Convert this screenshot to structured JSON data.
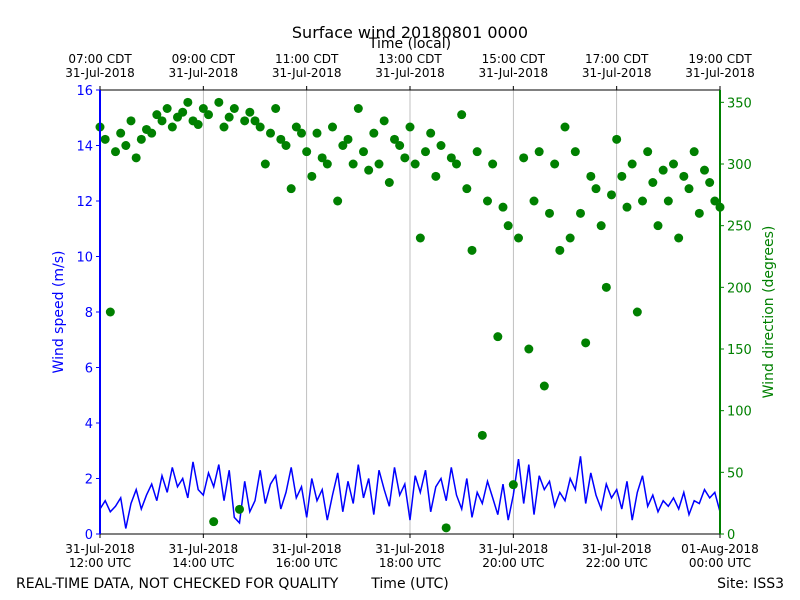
{
  "chart_data": {
    "type": "line+scatter",
    "title": "Surface wind 20180801 0000",
    "x_label": "Time (UTC)",
    "x2_label": "Time (local)",
    "y_label": "Wind speed (m/s)",
    "y2_label": "Wind direction (degrees)",
    "footer_left": "REAL-TIME DATA, NOT CHECKED FOR QUALITY",
    "footer_right": "Site: ISS3",
    "xlim": [
      "2018-07-31T12:00",
      "2018-08-01T00:00"
    ],
    "xticks": [
      {
        "value": "2018-07-31T12:00",
        "label": "31-Jul-2018\n12:00 UTC"
      },
      {
        "value": "2018-07-31T14:00",
        "label": "31-Jul-2018\n14:00 UTC"
      },
      {
        "value": "2018-07-31T16:00",
        "label": "31-Jul-2018\n16:00 UTC"
      },
      {
        "value": "2018-07-31T18:00",
        "label": "31-Jul-2018\n18:00 UTC"
      },
      {
        "value": "2018-07-31T20:00",
        "label": "31-Jul-2018\n20:00 UTC"
      },
      {
        "value": "2018-07-31T22:00",
        "label": "31-Jul-2018\n22:00 UTC"
      },
      {
        "value": "2018-08-01T00:00",
        "label": "01-Aug-2018\n00:00 UTC"
      }
    ],
    "x2ticks": [
      {
        "value": "2018-07-31T12:00",
        "label": "07:00 CDT\n31-Jul-2018"
      },
      {
        "value": "2018-07-31T14:00",
        "label": "09:00 CDT\n31-Jul-2018"
      },
      {
        "value": "2018-07-31T16:00",
        "label": "11:00 CDT\n31-Jul-2018"
      },
      {
        "value": "2018-07-31T18:00",
        "label": "13:00 CDT\n31-Jul-2018"
      },
      {
        "value": "2018-07-31T20:00",
        "label": "15:00 CDT\n31-Jul-2018"
      },
      {
        "value": "2018-07-31T22:00",
        "label": "17:00 CDT\n31-Jul-2018"
      },
      {
        "value": "2018-08-01T00:00",
        "label": "19:00 CDT\n31-Jul-2018"
      }
    ],
    "xgrid": true,
    "ylim": [
      0,
      16
    ],
    "yticks": [
      0,
      2,
      4,
      6,
      8,
      10,
      12,
      14,
      16
    ],
    "y2lim": [
      0,
      360
    ],
    "y2ticks": [
      0,
      50,
      100,
      150,
      200,
      250,
      300,
      350
    ],
    "x": [
      "2018-07-31T12:00",
      "2018-07-31T12:06",
      "2018-07-31T12:12",
      "2018-07-31T12:18",
      "2018-07-31T12:24",
      "2018-07-31T12:30",
      "2018-07-31T12:36",
      "2018-07-31T12:42",
      "2018-07-31T12:48",
      "2018-07-31T12:54",
      "2018-07-31T13:00",
      "2018-07-31T13:06",
      "2018-07-31T13:12",
      "2018-07-31T13:18",
      "2018-07-31T13:24",
      "2018-07-31T13:30",
      "2018-07-31T13:36",
      "2018-07-31T13:42",
      "2018-07-31T13:48",
      "2018-07-31T13:54",
      "2018-07-31T14:00",
      "2018-07-31T14:06",
      "2018-07-31T14:12",
      "2018-07-31T14:18",
      "2018-07-31T14:24",
      "2018-07-31T14:30",
      "2018-07-31T14:36",
      "2018-07-31T14:42",
      "2018-07-31T14:48",
      "2018-07-31T14:54",
      "2018-07-31T15:00",
      "2018-07-31T15:06",
      "2018-07-31T15:12",
      "2018-07-31T15:18",
      "2018-07-31T15:24",
      "2018-07-31T15:30",
      "2018-07-31T15:36",
      "2018-07-31T15:42",
      "2018-07-31T15:48",
      "2018-07-31T15:54",
      "2018-07-31T16:00",
      "2018-07-31T16:06",
      "2018-07-31T16:12",
      "2018-07-31T16:18",
      "2018-07-31T16:24",
      "2018-07-31T16:30",
      "2018-07-31T16:36",
      "2018-07-31T16:42",
      "2018-07-31T16:48",
      "2018-07-31T16:54",
      "2018-07-31T17:00",
      "2018-07-31T17:06",
      "2018-07-31T17:12",
      "2018-07-31T17:18",
      "2018-07-31T17:24",
      "2018-07-31T17:30",
      "2018-07-31T17:36",
      "2018-07-31T17:42",
      "2018-07-31T17:48",
      "2018-07-31T17:54",
      "2018-07-31T18:00",
      "2018-07-31T18:06",
      "2018-07-31T18:12",
      "2018-07-31T18:18",
      "2018-07-31T18:24",
      "2018-07-31T18:30",
      "2018-07-31T18:36",
      "2018-07-31T18:42",
      "2018-07-31T18:48",
      "2018-07-31T18:54",
      "2018-07-31T19:00",
      "2018-07-31T19:06",
      "2018-07-31T19:12",
      "2018-07-31T19:18",
      "2018-07-31T19:24",
      "2018-07-31T19:30",
      "2018-07-31T19:36",
      "2018-07-31T19:42",
      "2018-07-31T19:48",
      "2018-07-31T19:54",
      "2018-07-31T20:00",
      "2018-07-31T20:06",
      "2018-07-31T20:12",
      "2018-07-31T20:18",
      "2018-07-31T20:24",
      "2018-07-31T20:30",
      "2018-07-31T20:36",
      "2018-07-31T20:42",
      "2018-07-31T20:48",
      "2018-07-31T20:54",
      "2018-07-31T21:00",
      "2018-07-31T21:06",
      "2018-07-31T21:12",
      "2018-07-31T21:18",
      "2018-07-31T21:24",
      "2018-07-31T21:30",
      "2018-07-31T21:36",
      "2018-07-31T21:42",
      "2018-07-31T21:48",
      "2018-07-31T21:54",
      "2018-07-31T22:00",
      "2018-07-31T22:06",
      "2018-07-31T22:12",
      "2018-07-31T22:18",
      "2018-07-31T22:24",
      "2018-07-31T22:30",
      "2018-07-31T22:36",
      "2018-07-31T22:42",
      "2018-07-31T22:48",
      "2018-07-31T22:54",
      "2018-07-31T23:00",
      "2018-07-31T23:06",
      "2018-07-31T23:12",
      "2018-07-31T23:18",
      "2018-07-31T23:24",
      "2018-07-31T23:30",
      "2018-07-31T23:36",
      "2018-07-31T23:42",
      "2018-07-31T23:48",
      "2018-07-31T23:54",
      "2018-08-01T00:00"
    ],
    "series": [
      {
        "type": "line",
        "color": "#0000ff",
        "values": [
          0.9,
          1.2,
          0.8,
          1.0,
          1.3,
          0.2,
          1.1,
          1.6,
          0.9,
          1.4,
          1.8,
          1.2,
          2.1,
          1.5,
          2.4,
          1.7,
          2.0,
          1.3,
          2.6,
          1.6,
          1.4,
          2.2,
          1.7,
          2.5,
          1.2,
          2.3,
          0.6,
          0.4,
          1.9,
          0.8,
          1.2,
          2.3,
          1.1,
          1.8,
          2.1,
          0.9,
          1.5,
          2.4,
          1.3,
          1.7,
          0.6,
          2.0,
          1.2,
          1.6,
          0.5,
          1.4,
          2.2,
          0.8,
          1.9,
          1.1,
          2.5,
          1.3,
          2.0,
          0.7,
          2.3,
          1.6,
          1.0,
          2.4,
          1.4,
          1.8,
          0.5,
          2.1,
          1.5,
          2.3,
          0.8,
          1.7,
          2.0,
          1.2,
          2.4,
          1.4,
          0.9,
          2.0,
          0.6,
          1.5,
          1.1,
          1.9,
          1.3,
          0.7,
          1.8,
          0.5,
          1.4,
          2.7,
          1.1,
          2.5,
          0.7,
          2.1,
          1.6,
          1.9,
          1.0,
          1.5,
          1.2,
          2.0,
          1.6,
          2.8,
          1.1,
          2.2,
          1.4,
          0.9,
          1.8,
          1.3,
          1.6,
          0.9,
          1.9,
          0.5,
          1.5,
          2.1,
          1.0,
          1.4,
          0.8,
          1.2,
          1.0,
          1.3,
          0.9,
          1.5,
          0.7,
          1.2,
          1.1,
          1.6,
          1.3,
          1.5,
          0.8
        ]
      },
      {
        "type": "scatter",
        "axis": "y2",
        "color": "#008000",
        "values": [
          330,
          320,
          180,
          310,
          325,
          315,
          335,
          305,
          320,
          328,
          325,
          340,
          335,
          345,
          330,
          338,
          342,
          350,
          335,
          332,
          345,
          340,
          10,
          350,
          330,
          338,
          345,
          20,
          335,
          342,
          335,
          330,
          300,
          325,
          345,
          320,
          315,
          280,
          330,
          325,
          310,
          290,
          325,
          305,
          300,
          330,
          270,
          315,
          320,
          300,
          345,
          310,
          295,
          325,
          300,
          335,
          285,
          320,
          315,
          305,
          330,
          300,
          240,
          310,
          325,
          290,
          315,
          5,
          305,
          300,
          340,
          280,
          230,
          310,
          80,
          270,
          300,
          160,
          265,
          250,
          40,
          240,
          305,
          150,
          270,
          310,
          120,
          260,
          300,
          230,
          330,
          240,
          310,
          260,
          155,
          290,
          280,
          250,
          200,
          275,
          320,
          290,
          265,
          300,
          180,
          270,
          310,
          285,
          250,
          295,
          270,
          300,
          240,
          290,
          280,
          310,
          260,
          295,
          285,
          270,
          265
        ]
      }
    ]
  }
}
